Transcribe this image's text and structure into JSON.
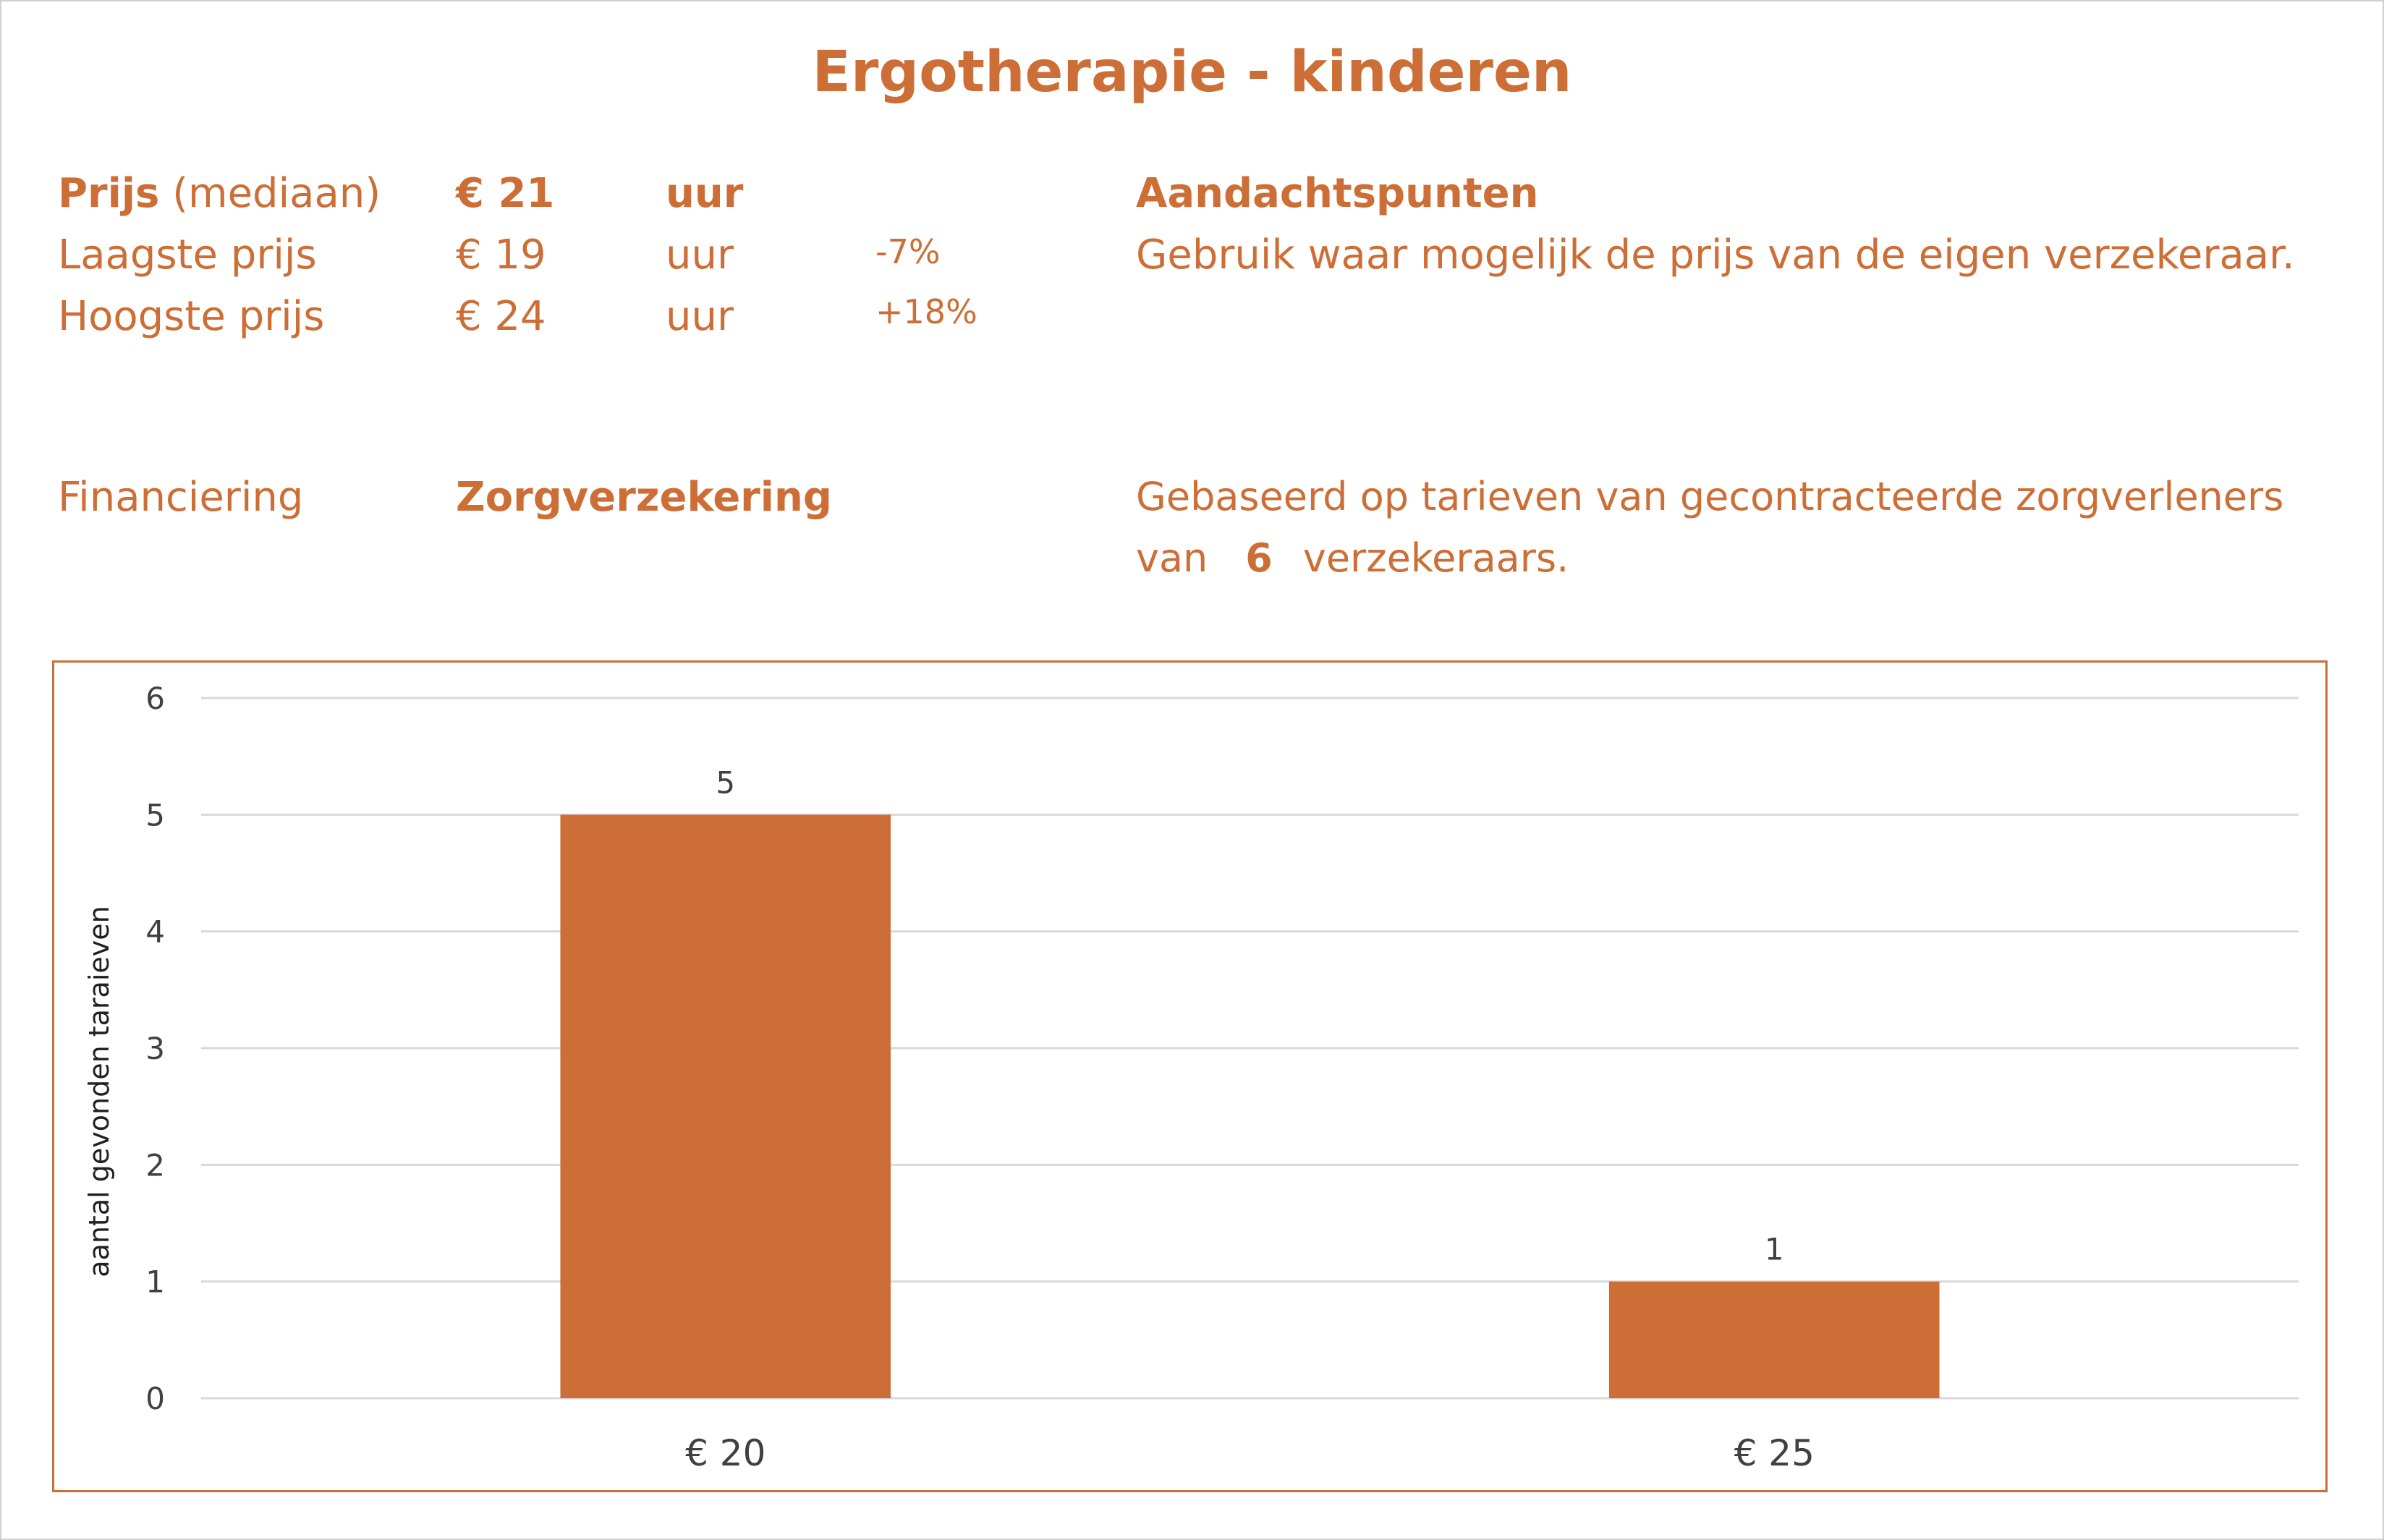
{
  "title": "Ergotherapie - kinderen",
  "prices": {
    "median_label_bold": "Prijs",
    "median_label_rest": "(mediaan)",
    "median_value": "€ 21",
    "median_unit": "uur",
    "low_label": "Laagste prijs",
    "low_value": "€ 19",
    "low_unit": "uur",
    "low_pct": "-7%",
    "high_label": "Hoogste prijs",
    "high_value": "€ 24",
    "high_unit": "uur",
    "high_pct": "+18%"
  },
  "notes": {
    "heading": "Aandachtspunten",
    "text": "Gebruik waar mogelijk de prijs van de eigen verzekeraar."
  },
  "financing": {
    "label": "Financiering",
    "value": "Zorgverzekering"
  },
  "basis": {
    "line1": "Gebaseerd op tarieven van gecontracteerde zorgverleners",
    "prefix": "van",
    "count": "6",
    "suffix": "verzekeraars."
  },
  "colors": {
    "accent": "#CC6E36",
    "grid": "#d9d9d9",
    "text": "#404040"
  },
  "chart_data": {
    "type": "bar",
    "categories": [
      "€ 20",
      "€ 25"
    ],
    "values": [
      5,
      1
    ],
    "ylabel": "aantal gevonden taraieven",
    "xlabel": "",
    "ylim": [
      0,
      6
    ],
    "yticks": [
      0,
      1,
      2,
      3,
      4,
      5,
      6
    ],
    "grid": true,
    "data_labels": true
  }
}
